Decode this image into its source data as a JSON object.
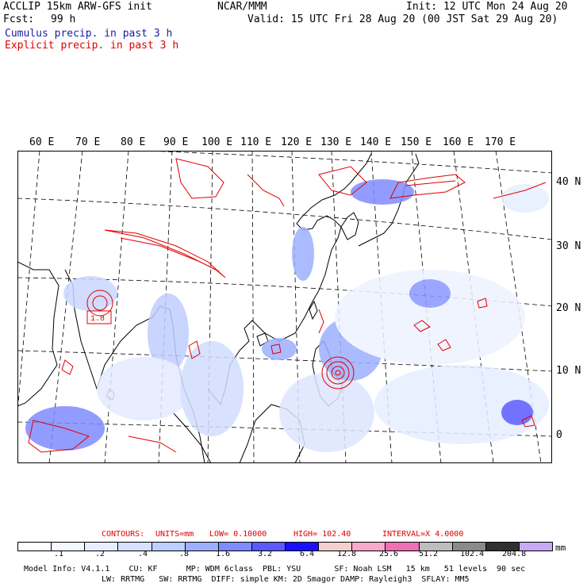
{
  "header": {
    "title": "ACCLIP 15km ARW-GFS init",
    "fcst_label": "Fcst:",
    "fcst_value": "99 h",
    "org": "NCAR/MMM",
    "init": "Init: 12 UTC Mon 24 Aug 20",
    "valid": "Valid: 15 UTC Fri 28 Aug 20 (00 JST Sat 29 Aug 20)",
    "cumulus": "Cumulus precip. in past 3 h",
    "explicit": "Explicit precip. in past 3 h"
  },
  "map": {
    "lon_labels": [
      "60 E",
      "70 E",
      "80 E",
      "90 E",
      "100 E",
      "110 E",
      "120 E",
      "130 E",
      "140 E",
      "150 E",
      "160 E",
      "170 E"
    ],
    "lat_labels": [
      "40 N",
      "30 N",
      "20 N",
      "10 N",
      "0"
    ],
    "box_label": "1.8"
  },
  "contours": {
    "label": "CONTOURS:",
    "units": "UNITS=mm",
    "low": "LOW= 0.10000",
    "high": "HIGH= 102.40",
    "interval": "INTERVAL=X 4.0000"
  },
  "colorbar": {
    "colors": [
      "#ffffff",
      "#f4f8ff",
      "#e6eeff",
      "#d6e2ff",
      "#bccfff",
      "#9cb0ff",
      "#7f8bff",
      "#5a5aff",
      "#1a10ff",
      "#f3cfcf",
      "#f8aac8",
      "#f070b8",
      "#bdbdbd",
      "#8a8a8a",
      "#303030",
      "#c9a8f5"
    ],
    "ticks": [
      ".1",
      ".2",
      ".4",
      ".8",
      "1.6",
      "3.2",
      "6.4",
      "12.8",
      "25.6",
      "51.2",
      "102.4",
      "204.8"
    ],
    "unit": "mm"
  },
  "footer": {
    "line1": "Model Info: V4.1.1    CU: KF      MP: WDM 6class  PBL: YSU       SF: Noah LSM   15 km   51 levels  90 sec",
    "line2": "LW: RRTMG   SW: RRTMG  DIFF: simple KM: 2D Smagor DAMP: Rayleigh3  SFLAY: MM5"
  }
}
